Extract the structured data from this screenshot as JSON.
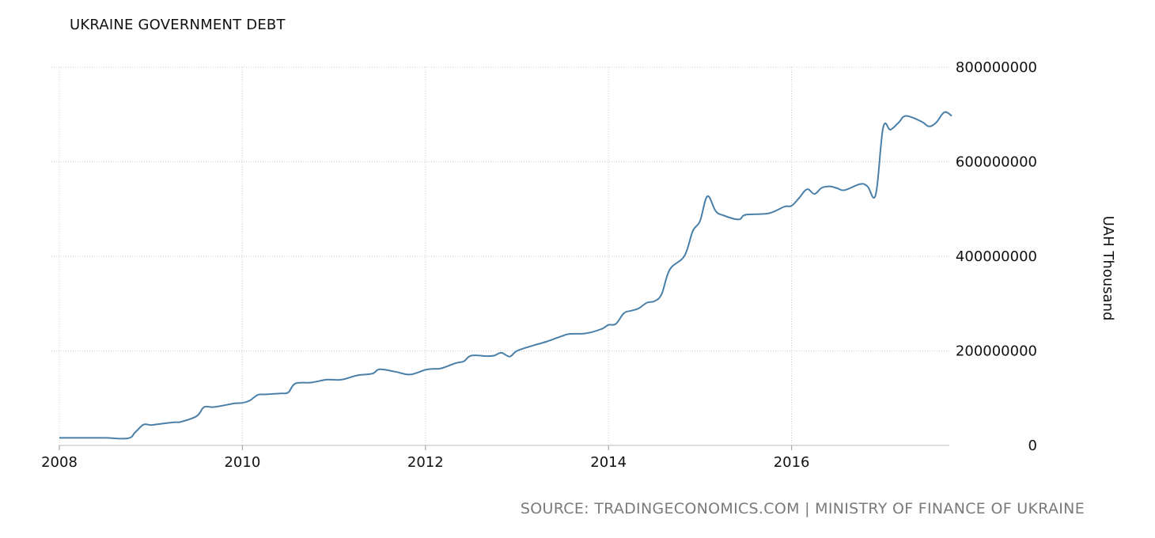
{
  "chart_data": {
    "type": "line",
    "title": "UKRAINE GOVERNMENT DEBT",
    "xlabel": "",
    "ylabel": "UAH Thousand",
    "x_ticks": [
      "2008",
      "2010",
      "2012",
      "2014",
      "2016"
    ],
    "y_ticks": [
      "0",
      "200000000",
      "400000000",
      "600000000",
      "800000000"
    ],
    "ylim": [
      0,
      800000000
    ],
    "xlim": [
      2008.0,
      2017.75
    ],
    "grid": true,
    "legend": "none",
    "line_color": "#4a7fa8",
    "series": [
      {
        "x": [
          2008.0,
          2008.25,
          2008.5,
          2008.75,
          2008.83,
          2008.92,
          2009.0,
          2009.08,
          2009.25,
          2009.33,
          2009.5,
          2009.58,
          2009.67,
          2009.75,
          2009.92,
          2010.0,
          2010.08,
          2010.17,
          2010.25,
          2010.42,
          2010.5,
          2010.58,
          2010.75,
          2010.92,
          2011.08,
          2011.25,
          2011.42,
          2011.5,
          2011.67,
          2011.83,
          2012.0,
          2012.08,
          2012.17,
          2012.33,
          2012.42,
          2012.5,
          2012.67,
          2012.75,
          2012.83,
          2012.92,
          2013.0,
          2013.17,
          2013.33,
          2013.5,
          2013.58,
          2013.75,
          2013.92,
          2014.0,
          2014.08,
          2014.17,
          2014.25,
          2014.33,
          2014.42,
          2014.5,
          2014.58,
          2014.67,
          2014.83,
          2014.92,
          2015.0,
          2015.08,
          2015.17,
          2015.25,
          2015.42,
          2015.5,
          2015.75,
          2015.92,
          2016.0,
          2016.08,
          2016.17,
          2016.25,
          2016.33,
          2016.42,
          2016.5,
          2016.58,
          2016.75,
          2016.83,
          2016.92,
          2017.0,
          2017.08,
          2017.17,
          2017.25,
          2017.42,
          2017.5,
          2017.58,
          2017.67,
          2017.75
        ],
        "values": [
          16000000,
          16000000,
          16000000,
          15000000,
          28000000,
          44000000,
          43000000,
          45000000,
          49000000,
          50000000,
          62000000,
          81000000,
          81000000,
          83000000,
          89000000,
          90000000,
          95000000,
          107000000,
          108000000,
          110000000,
          112000000,
          131000000,
          133000000,
          139000000,
          139000000,
          148000000,
          152000000,
          161000000,
          156000000,
          150000000,
          160000000,
          162000000,
          163000000,
          174000000,
          178000000,
          190000000,
          189000000,
          190000000,
          196000000,
          188000000,
          200000000,
          211000000,
          220000000,
          232000000,
          236000000,
          237000000,
          246000000,
          255000000,
          257000000,
          280000000,
          285000000,
          290000000,
          302000000,
          305000000,
          320000000,
          372000000,
          401000000,
          453000000,
          475000000,
          527000000,
          496000000,
          487000000,
          478000000,
          488000000,
          491000000,
          505000000,
          507000000,
          523000000,
          542000000,
          532000000,
          545000000,
          548000000,
          544000000,
          540000000,
          553000000,
          548000000,
          531000000,
          672000000,
          668000000,
          683000000,
          697000000,
          685000000,
          675000000,
          683000000,
          705000000,
          697000000
        ]
      }
    ]
  },
  "footer": {
    "source": "SOURCE: TRADINGECONOMICS.COM | MINISTRY OF FINANCE OF UKRAINE"
  }
}
